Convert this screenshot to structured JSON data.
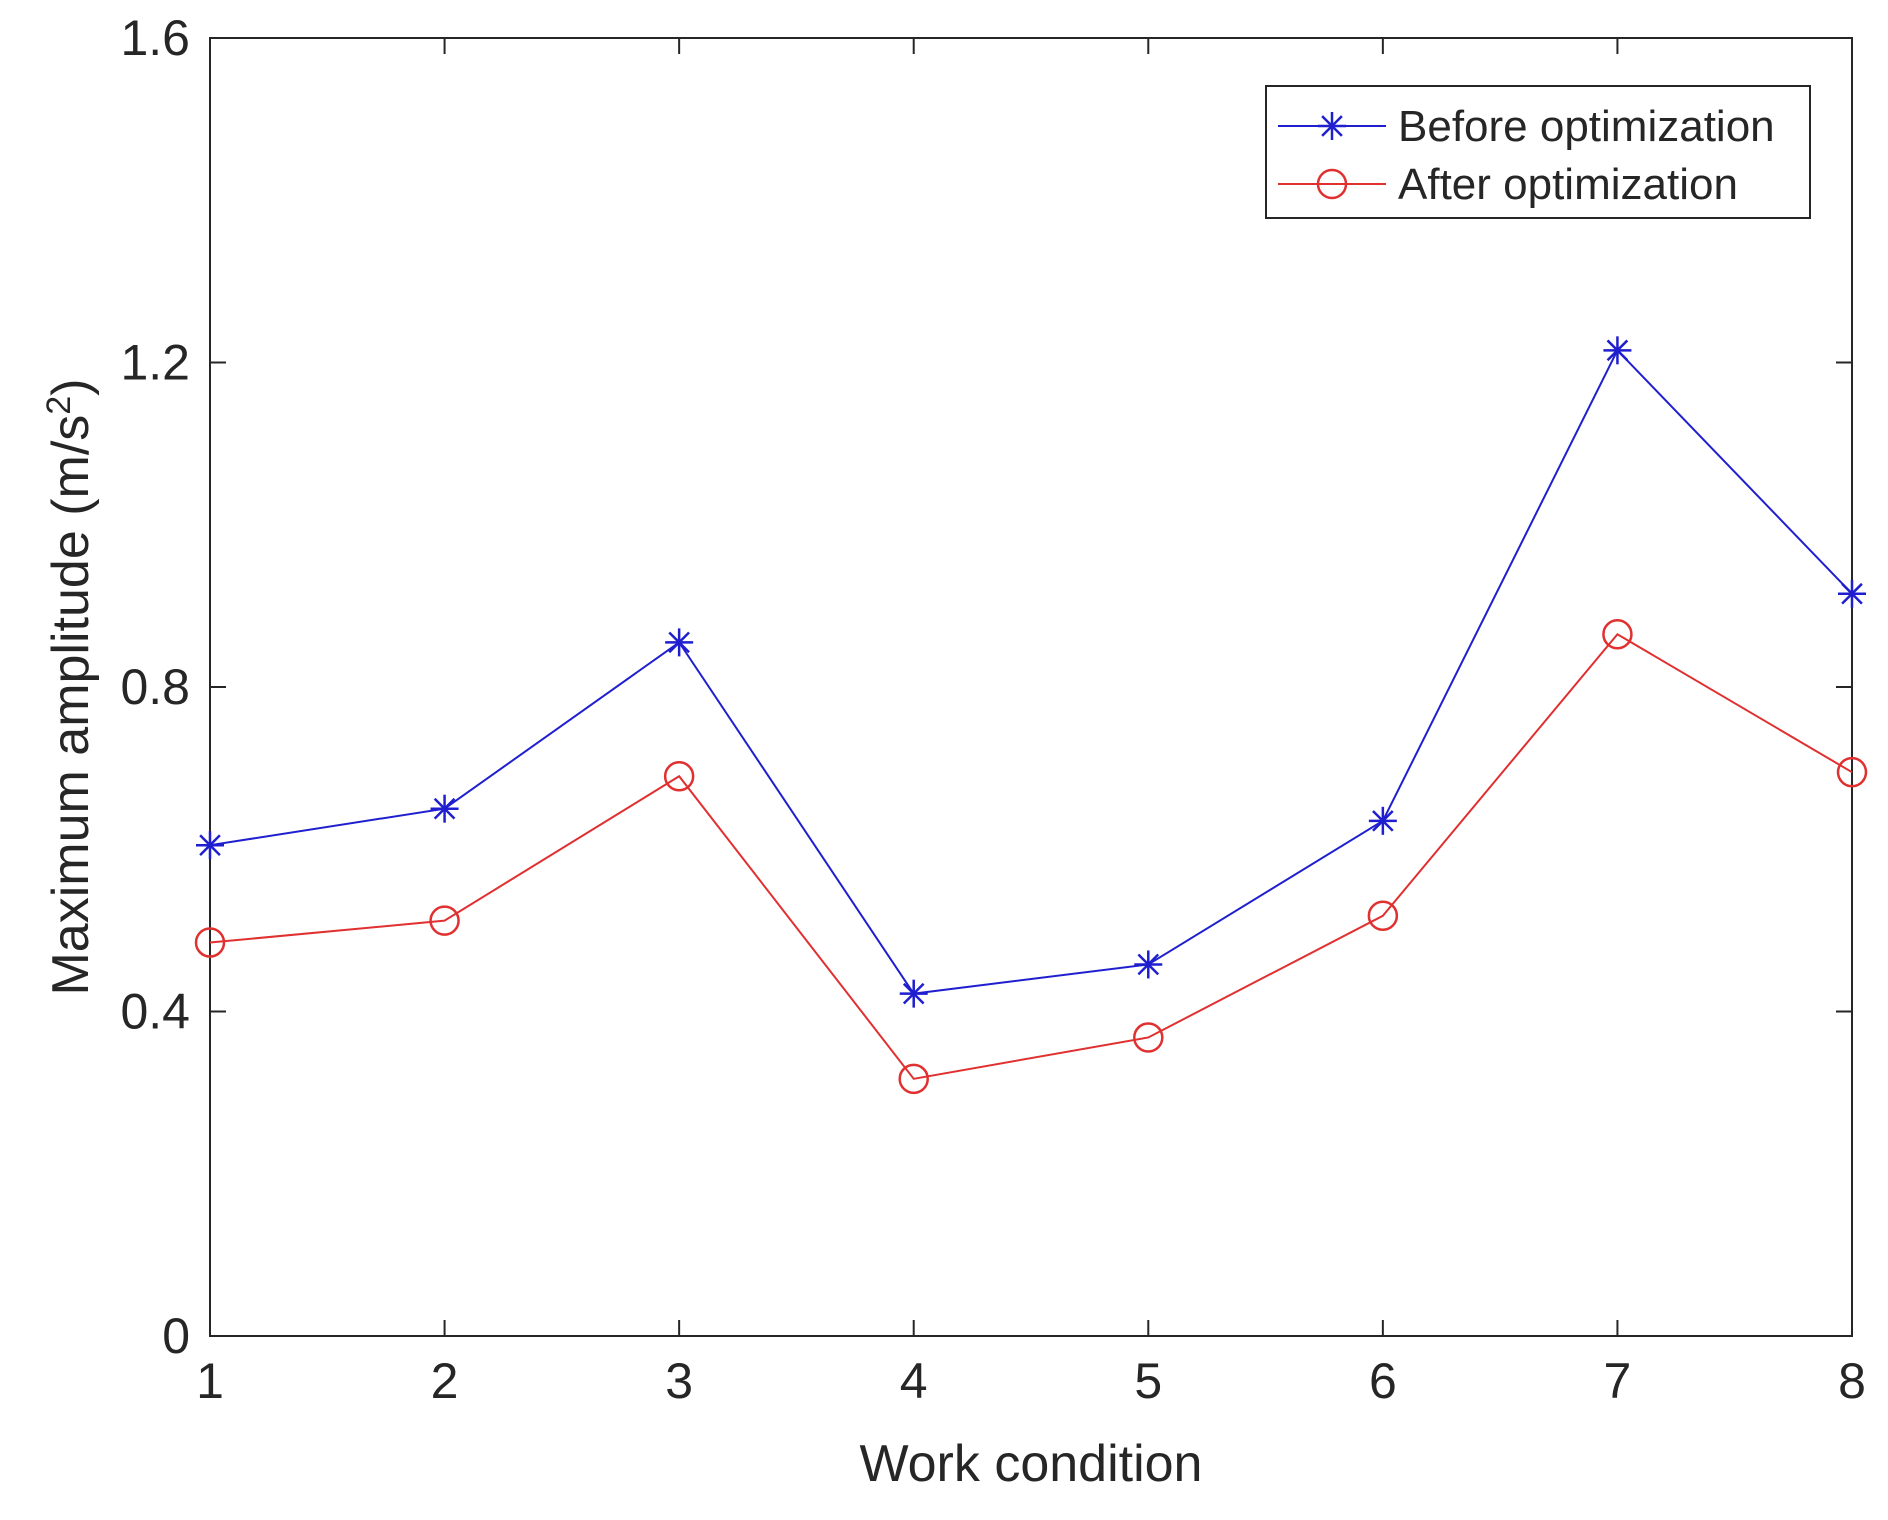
{
  "chart_data": {
    "type": "line",
    "title": "",
    "xlabel": "Work condition",
    "ylabel": "Maximum amplitude (m/s",
    "ylabel_superscript": "2",
    "ylabel_suffix": ")",
    "x": [
      1,
      2,
      3,
      4,
      5,
      6,
      7,
      8
    ],
    "xlim": [
      1,
      8
    ],
    "ylim": [
      0,
      1.6
    ],
    "xticks": [
      "1",
      "2",
      "3",
      "4",
      "5",
      "6",
      "7",
      "8"
    ],
    "yticks": [
      "0",
      "0.4",
      "0.8",
      "1.2",
      "1.6"
    ],
    "grid": false,
    "legend_position": "top-right",
    "series": [
      {
        "name": "Before optimization",
        "marker": "asterisk",
        "color": "#1f1fcf",
        "values": [
          0.605,
          0.65,
          0.855,
          0.422,
          0.458,
          0.635,
          1.215,
          0.915
        ]
      },
      {
        "name": "After optimization",
        "marker": "circle",
        "color": "#e03030",
        "values": [
          0.485,
          0.512,
          0.69,
          0.317,
          0.368,
          0.518,
          0.865,
          0.695
        ]
      }
    ]
  }
}
